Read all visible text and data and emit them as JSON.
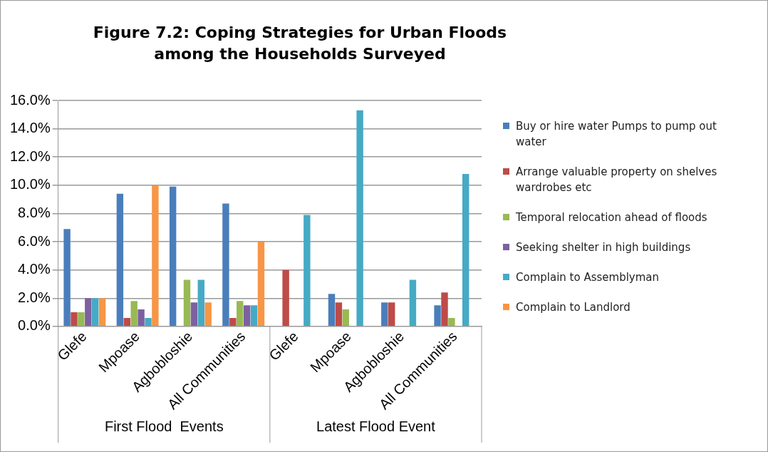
{
  "chart_data": {
    "type": "bar",
    "title": "Figure 7.2: Coping  Strategies  for  Urban Floods  among the Households Surveyed",
    "categories": [
      "Glefe",
      "Mpoase",
      "Agbobloshie",
      "All Communities",
      "Glefe",
      "Mpoase",
      "Agbobloshie",
      "All Communities"
    ],
    "series": [
      {
        "name": "Buy or hire water  Pumps to pump out water",
        "color": "#4a7ebb",
        "values": [
          6.9,
          9.4,
          9.9,
          8.7,
          0,
          2.3,
          1.7,
          1.5
        ]
      },
      {
        "name": "Arrange valuable  property  on shelves wardrobes  etc",
        "color": "#be4b48",
        "values": [
          1.0,
          0.6,
          0,
          0.6,
          4.0,
          1.7,
          1.7,
          2.4
        ]
      },
      {
        "name": "Temporal relocation  ahead  of floods",
        "color": "#98b954",
        "values": [
          1.0,
          1.8,
          3.3,
          1.8,
          0,
          1.2,
          0,
          0.6
        ]
      },
      {
        "name": "Seeking shelter in  high buildings",
        "color": "#7d60a0",
        "values": [
          2.0,
          1.2,
          1.7,
          1.5,
          0,
          0,
          0,
          0
        ]
      },
      {
        "name": "Complain to Assemblyman",
        "color": "#46aac5",
        "values": [
          2.0,
          0.6,
          3.3,
          1.5,
          7.9,
          15.3,
          3.3,
          10.8
        ]
      },
      {
        "name": "Complain to Landlord",
        "color": "#f79646",
        "values": [
          2.0,
          10.0,
          1.7,
          6.0,
          0,
          0,
          0,
          0
        ]
      }
    ],
    "ylim": [
      0,
      16
    ],
    "yticks": [
      {
        "value": 0,
        "label": "0.0%"
      },
      {
        "value": 2,
        "label": "2.0%"
      },
      {
        "value": 4,
        "label": "4.0%"
      },
      {
        "value": 6,
        "label": "6.0%"
      },
      {
        "value": 8,
        "label": "8.0%"
      },
      {
        "value": 10,
        "label": "10.0%"
      },
      {
        "value": 12,
        "label": "12.0%"
      },
      {
        "value": 14,
        "label": "14.0%"
      },
      {
        "value": 16,
        "label": "16.0%"
      }
    ],
    "grid": "y",
    "legend": "right",
    "annotations": [
      "First Flood  Events",
      "Latest Flood Event"
    ]
  }
}
